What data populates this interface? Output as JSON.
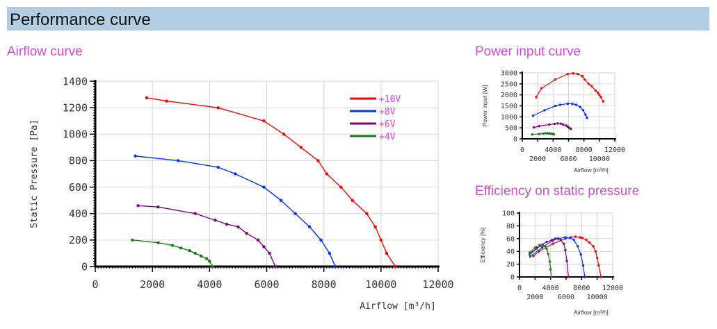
{
  "header": {
    "title": "Performance curve"
  },
  "sections": {
    "airflow": "Airflow curve",
    "power": "Power input curve",
    "efficiency": "Efficiency on static pressure"
  },
  "colors": {
    "s10": "#ff0000",
    "s8": "#0033ff",
    "s6": "#800080",
    "s4": "#1a7a1a",
    "s2": "#555555",
    "title": "#d44bd0",
    "header_bg": "#b3cde3"
  },
  "chart_data": [
    {
      "type": "line",
      "title": "Airflow curve",
      "xlabel": "Airflow [m³/h]",
      "ylabel": "Static Pressure [Pa]",
      "xlim": [
        0,
        12000
      ],
      "ylim": [
        0,
        1400
      ],
      "xticks": [
        0,
        2000,
        4000,
        6000,
        8000,
        10000,
        12000
      ],
      "yticks": [
        0,
        200,
        400,
        600,
        800,
        1000,
        1200,
        1400
      ],
      "grid": true,
      "legend": "top-right",
      "series": [
        {
          "name": "+10V",
          "color": "#ff0000",
          "x": [
            1800,
            2500,
            4300,
            5900,
            6600,
            7200,
            7800,
            8100,
            8600,
            9000,
            9500,
            9800,
            10000,
            10200,
            10500
          ],
          "y": [
            1275,
            1250,
            1200,
            1100,
            1000,
            900,
            800,
            700,
            600,
            500,
            400,
            300,
            200,
            100,
            0
          ]
        },
        {
          "name": "+8V",
          "color": "#0033ff",
          "x": [
            1400,
            2900,
            4300,
            4900,
            5900,
            6500,
            7000,
            7500,
            7900,
            8200,
            8400
          ],
          "y": [
            835,
            800,
            750,
            700,
            600,
            500,
            400,
            300,
            200,
            100,
            0
          ]
        },
        {
          "name": "+6V",
          "color": "#800080",
          "x": [
            1500,
            2200,
            3500,
            4200,
            4600,
            5000,
            5300,
            5700,
            5900,
            6100,
            6300
          ],
          "y": [
            460,
            450,
            400,
            350,
            320,
            300,
            250,
            200,
            150,
            100,
            0
          ]
        },
        {
          "name": "+4V",
          "color": "#1a7a1a",
          "x": [
            1300,
            2200,
            2700,
            3000,
            3300,
            3500,
            3700,
            3900,
            4000,
            4100
          ],
          "y": [
            200,
            180,
            160,
            140,
            120,
            100,
            80,
            60,
            40,
            0
          ]
        }
      ]
    },
    {
      "type": "line",
      "title": "Power input curve",
      "xlabel": "Airflow [m³/h]",
      "ylabel": "Power input [W]",
      "xlim": [
        0,
        12000
      ],
      "ylim": [
        0,
        3000
      ],
      "xticks": [
        0,
        2000,
        4000,
        6000,
        8000,
        10000,
        12000
      ],
      "yticks": [
        0,
        500,
        1000,
        1500,
        2000,
        2500,
        3000
      ],
      "grid": true,
      "series": [
        {
          "name": "+10V",
          "color": "#ff0000",
          "x": [
            1800,
            2500,
            4300,
            5900,
            6600,
            7200,
            7800,
            8100,
            8600,
            9000,
            9500,
            9800,
            10000,
            10200,
            10500
          ],
          "y": [
            1900,
            2300,
            2700,
            2950,
            2980,
            2950,
            2850,
            2700,
            2500,
            2400,
            2200,
            2100,
            2000,
            1900,
            1700
          ]
        },
        {
          "name": "+8V",
          "color": "#0033ff",
          "x": [
            1400,
            2900,
            4300,
            4900,
            5900,
            6500,
            7000,
            7500,
            7900,
            8200,
            8400
          ],
          "y": [
            1050,
            1300,
            1500,
            1550,
            1600,
            1590,
            1550,
            1450,
            1300,
            1100,
            950
          ]
        },
        {
          "name": "+6V",
          "color": "#800080",
          "x": [
            1500,
            2200,
            3500,
            4200,
            4600,
            5000,
            5300,
            5700,
            5900,
            6100,
            6300
          ],
          "y": [
            520,
            580,
            650,
            680,
            700,
            690,
            650,
            600,
            550,
            500,
            450
          ]
        },
        {
          "name": "+4V",
          "color": "#1a7a1a",
          "x": [
            1300,
            2200,
            2700,
            3000,
            3300,
            3500,
            3700,
            3900,
            4000,
            4100
          ],
          "y": [
            200,
            220,
            240,
            250,
            250,
            245,
            240,
            230,
            220,
            200
          ]
        }
      ]
    },
    {
      "type": "line",
      "title": "Efficiency on static pressure",
      "xlabel": "Airflow [m³/h]",
      "ylabel": "Efficiency [%]",
      "xlim": [
        0,
        12000
      ],
      "ylim": [
        0,
        100
      ],
      "xticks": [
        0,
        2000,
        4000,
        6000,
        8000,
        10000,
        12000
      ],
      "yticks": [
        0,
        20,
        40,
        60,
        80,
        100
      ],
      "grid": true,
      "series": [
        {
          "name": "+10V",
          "color": "#ff0000",
          "x": [
            1800,
            2500,
            4300,
            5900,
            6600,
            7200,
            7800,
            8100,
            8600,
            9000,
            9500,
            9800,
            10000,
            10200,
            10500
          ],
          "y": [
            33,
            40,
            52,
            60,
            62,
            63,
            62,
            61,
            58,
            54,
            48,
            40,
            30,
            18,
            0
          ]
        },
        {
          "name": "+8V",
          "color": "#0033ff",
          "x": [
            1400,
            2900,
            4300,
            4900,
            5900,
            6500,
            7000,
            7500,
            7900,
            8200,
            8400
          ],
          "y": [
            32,
            46,
            57,
            60,
            62,
            61,
            58,
            48,
            35,
            18,
            0
          ]
        },
        {
          "name": "+6V",
          "color": "#800080",
          "x": [
            1500,
            2200,
            3500,
            4200,
            4600,
            5000,
            5300,
            5700,
            5900,
            6100,
            6300
          ],
          "y": [
            38,
            45,
            55,
            58,
            60,
            60,
            58,
            52,
            42,
            25,
            0
          ]
        },
        {
          "name": "+4V",
          "color": "#1a7a1a",
          "x": [
            1300,
            2200,
            2700,
            3000,
            3300,
            3500,
            3700,
            3900,
            4000,
            4100
          ],
          "y": [
            35,
            44,
            49,
            50,
            48,
            44,
            36,
            24,
            12,
            0
          ]
        },
        {
          "color": "#555555",
          "x": [
            1300,
            2000,
            2600,
            3000
          ],
          "y": [
            38,
            46,
            50,
            51
          ]
        }
      ]
    }
  ]
}
